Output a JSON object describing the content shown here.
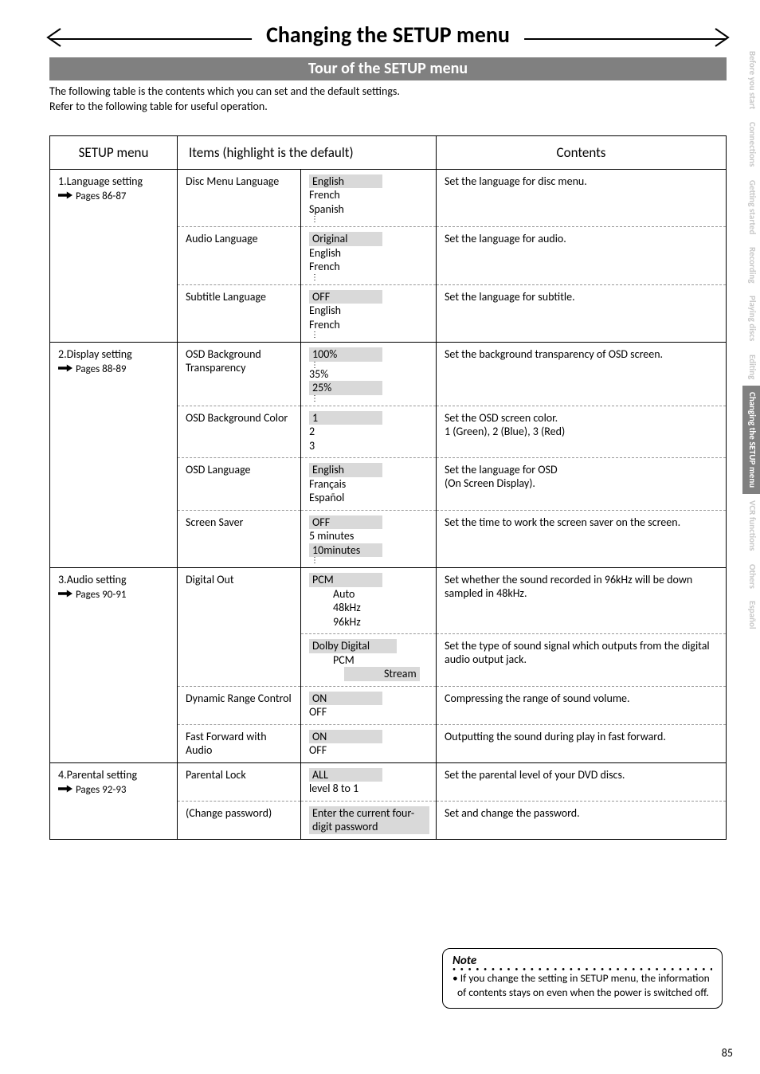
{
  "main_title": "Changing the SETUP menu",
  "sub_title": "Tour of the SETUP menu",
  "intro_line1": "The following table is the contents which you can set and the default settings.",
  "intro_line2": "Refer to the following table for useful operation.",
  "headers": {
    "menu": "SETUP menu",
    "items": "Items (highlight is the default)",
    "contents": "Contents"
  },
  "sections": [
    {
      "name": "1.Language setting",
      "pages": "Pages 86-87",
      "rows": [
        {
          "item": "Disc Menu Language",
          "opts": [
            {
              "t": "English",
              "d": true
            },
            {
              "t": "French"
            },
            {
              "t": "Spanish"
            },
            {
              "vdots": true
            }
          ],
          "content": "Set the language for disc menu."
        },
        {
          "item": "Audio Language",
          "opts": [
            {
              "t": "Original",
              "d": true
            },
            {
              "t": "English"
            },
            {
              "t": "French"
            },
            {
              "vdots": true
            }
          ],
          "content": "Set the language for audio."
        },
        {
          "item": "Subtitle Language",
          "opts": [
            {
              "t": "OFF",
              "d": true
            },
            {
              "t": "English"
            },
            {
              "t": "French"
            },
            {
              "vdots": true
            }
          ],
          "content": "Set the language for subtitle."
        }
      ]
    },
    {
      "name": "2.Display setting",
      "pages": "Pages 88-89",
      "rows": [
        {
          "item": "OSD Background Transparency",
          "opts": [
            {
              "t": "100%",
              "d": true
            },
            {
              "vdots": true
            },
            {
              "t": "35%"
            },
            {
              "t": "25%",
              "d": true
            },
            {
              "vdots": true
            }
          ],
          "content": "Set the background transparency of OSD screen."
        },
        {
          "item": "OSD Background Color",
          "opts": [
            {
              "t": "1",
              "d": true
            },
            {
              "t": "2"
            },
            {
              "t": "3"
            }
          ],
          "content": "Set the OSD screen color.\n1 (Green), 2 (Blue), 3 (Red)"
        },
        {
          "item": "OSD Language",
          "opts": [
            {
              "t": "English",
              "d": true
            },
            {
              "t": "Français"
            },
            {
              "t": "Español"
            }
          ],
          "content": "Set the language for OSD\n(On Screen Display)."
        },
        {
          "item": "Screen Saver",
          "opts": [
            {
              "t": "OFF",
              "d": true
            },
            {
              "t": "5 minutes"
            },
            {
              "t": "10minutes",
              "d": true
            },
            {
              "vdots": true
            }
          ],
          "content": "Set the time to work the screen saver on the screen."
        }
      ]
    },
    {
      "name": "3.Audio setting",
      "pages": "Pages 90-91",
      "rows": [
        {
          "item": "Digital Out",
          "custom_opts": "digital_out_1",
          "content": "Set whether the sound recorded in 96kHz will be down sampled in 48kHz."
        },
        {
          "item": "",
          "custom_opts": "digital_out_2",
          "content": "Set the type of sound signal which outputs from the digital audio output jack.",
          "no_item_dash": true
        },
        {
          "item": "Dynamic Range Control",
          "opts": [
            {
              "t": "ON",
              "d": true
            },
            {
              "t": "OFF"
            }
          ],
          "content": "Compressing the range of sound volume."
        },
        {
          "item": "Fast Forward with Audio",
          "opts": [
            {
              "t": "ON",
              "d": true
            },
            {
              "t": "OFF"
            }
          ],
          "content": "Outputting the sound during play in fast forward."
        }
      ]
    },
    {
      "name": "4.Parental setting",
      "pages": "Pages 92-93",
      "rows": [
        {
          "item": "Parental Lock",
          "opts": [
            {
              "t": "ALL",
              "d": true
            },
            {
              "t": "level 8 to 1"
            }
          ],
          "content": "Set the parental level of your DVD discs."
        },
        {
          "item": "(Change password)",
          "opts": [
            {
              "t": "Enter the current four-digit password",
              "d": true,
              "wide": true
            }
          ],
          "content": "Set and change the password."
        }
      ]
    }
  ],
  "digital_out": {
    "pcm": "PCM",
    "auto": "Auto",
    "k48": "48kHz",
    "k96": "96kHz",
    "dolby": "Dolby Digital",
    "pcm2": "PCM",
    "stream": "Stream"
  },
  "note": {
    "title": "Note",
    "body": "• If you change the setting in SETUP menu, the information of contents stays on even when the power is switched off."
  },
  "side_tabs": [
    {
      "t": "Before you start"
    },
    {
      "t": "Connections"
    },
    {
      "t": "Getting started"
    },
    {
      "t": "Recording"
    },
    {
      "t": "Playing discs"
    },
    {
      "t": "Editing"
    },
    {
      "t": "Changing the SETUP menu",
      "active": true
    },
    {
      "t": "VCR functions"
    },
    {
      "t": "Others"
    },
    {
      "t": "Español"
    }
  ],
  "page_number": "85"
}
